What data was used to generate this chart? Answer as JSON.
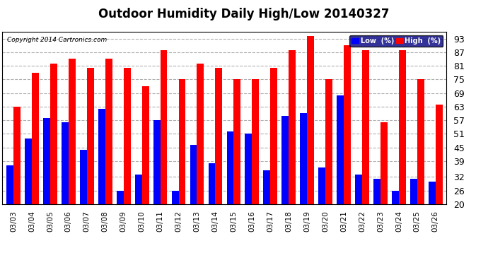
{
  "title": "Outdoor Humidity Daily High/Low 20140327",
  "copyright": "Copyright 2014 Cartronics.com",
  "dates": [
    "03/03",
    "03/04",
    "03/05",
    "03/06",
    "03/07",
    "03/08",
    "03/09",
    "03/10",
    "03/11",
    "03/12",
    "03/13",
    "03/14",
    "03/15",
    "03/16",
    "03/17",
    "03/18",
    "03/19",
    "03/20",
    "03/21",
    "03/22",
    "03/23",
    "03/24",
    "03/25",
    "03/26"
  ],
  "high": [
    63,
    78,
    82,
    84,
    80,
    84,
    80,
    72,
    88,
    75,
    82,
    80,
    75,
    75,
    80,
    88,
    94,
    75,
    90,
    88,
    56,
    88,
    75,
    64
  ],
  "low": [
    37,
    49,
    58,
    56,
    44,
    62,
    26,
    33,
    57,
    26,
    46,
    38,
    52,
    51,
    35,
    59,
    60,
    36,
    68,
    33,
    31,
    26,
    31,
    30
  ],
  "high_color": "#ff0000",
  "low_color": "#0000ff",
  "background_color": "#ffffff",
  "grid_color": "#b0b0b0",
  "yticks": [
    20,
    26,
    32,
    39,
    45,
    51,
    57,
    63,
    69,
    75,
    81,
    87,
    93
  ],
  "ymin": 20,
  "ymax": 96,
  "bar_width": 0.38,
  "title_fontsize": 12,
  "legend_low_label": "Low  (%)",
  "legend_high_label": "High  (%)"
}
